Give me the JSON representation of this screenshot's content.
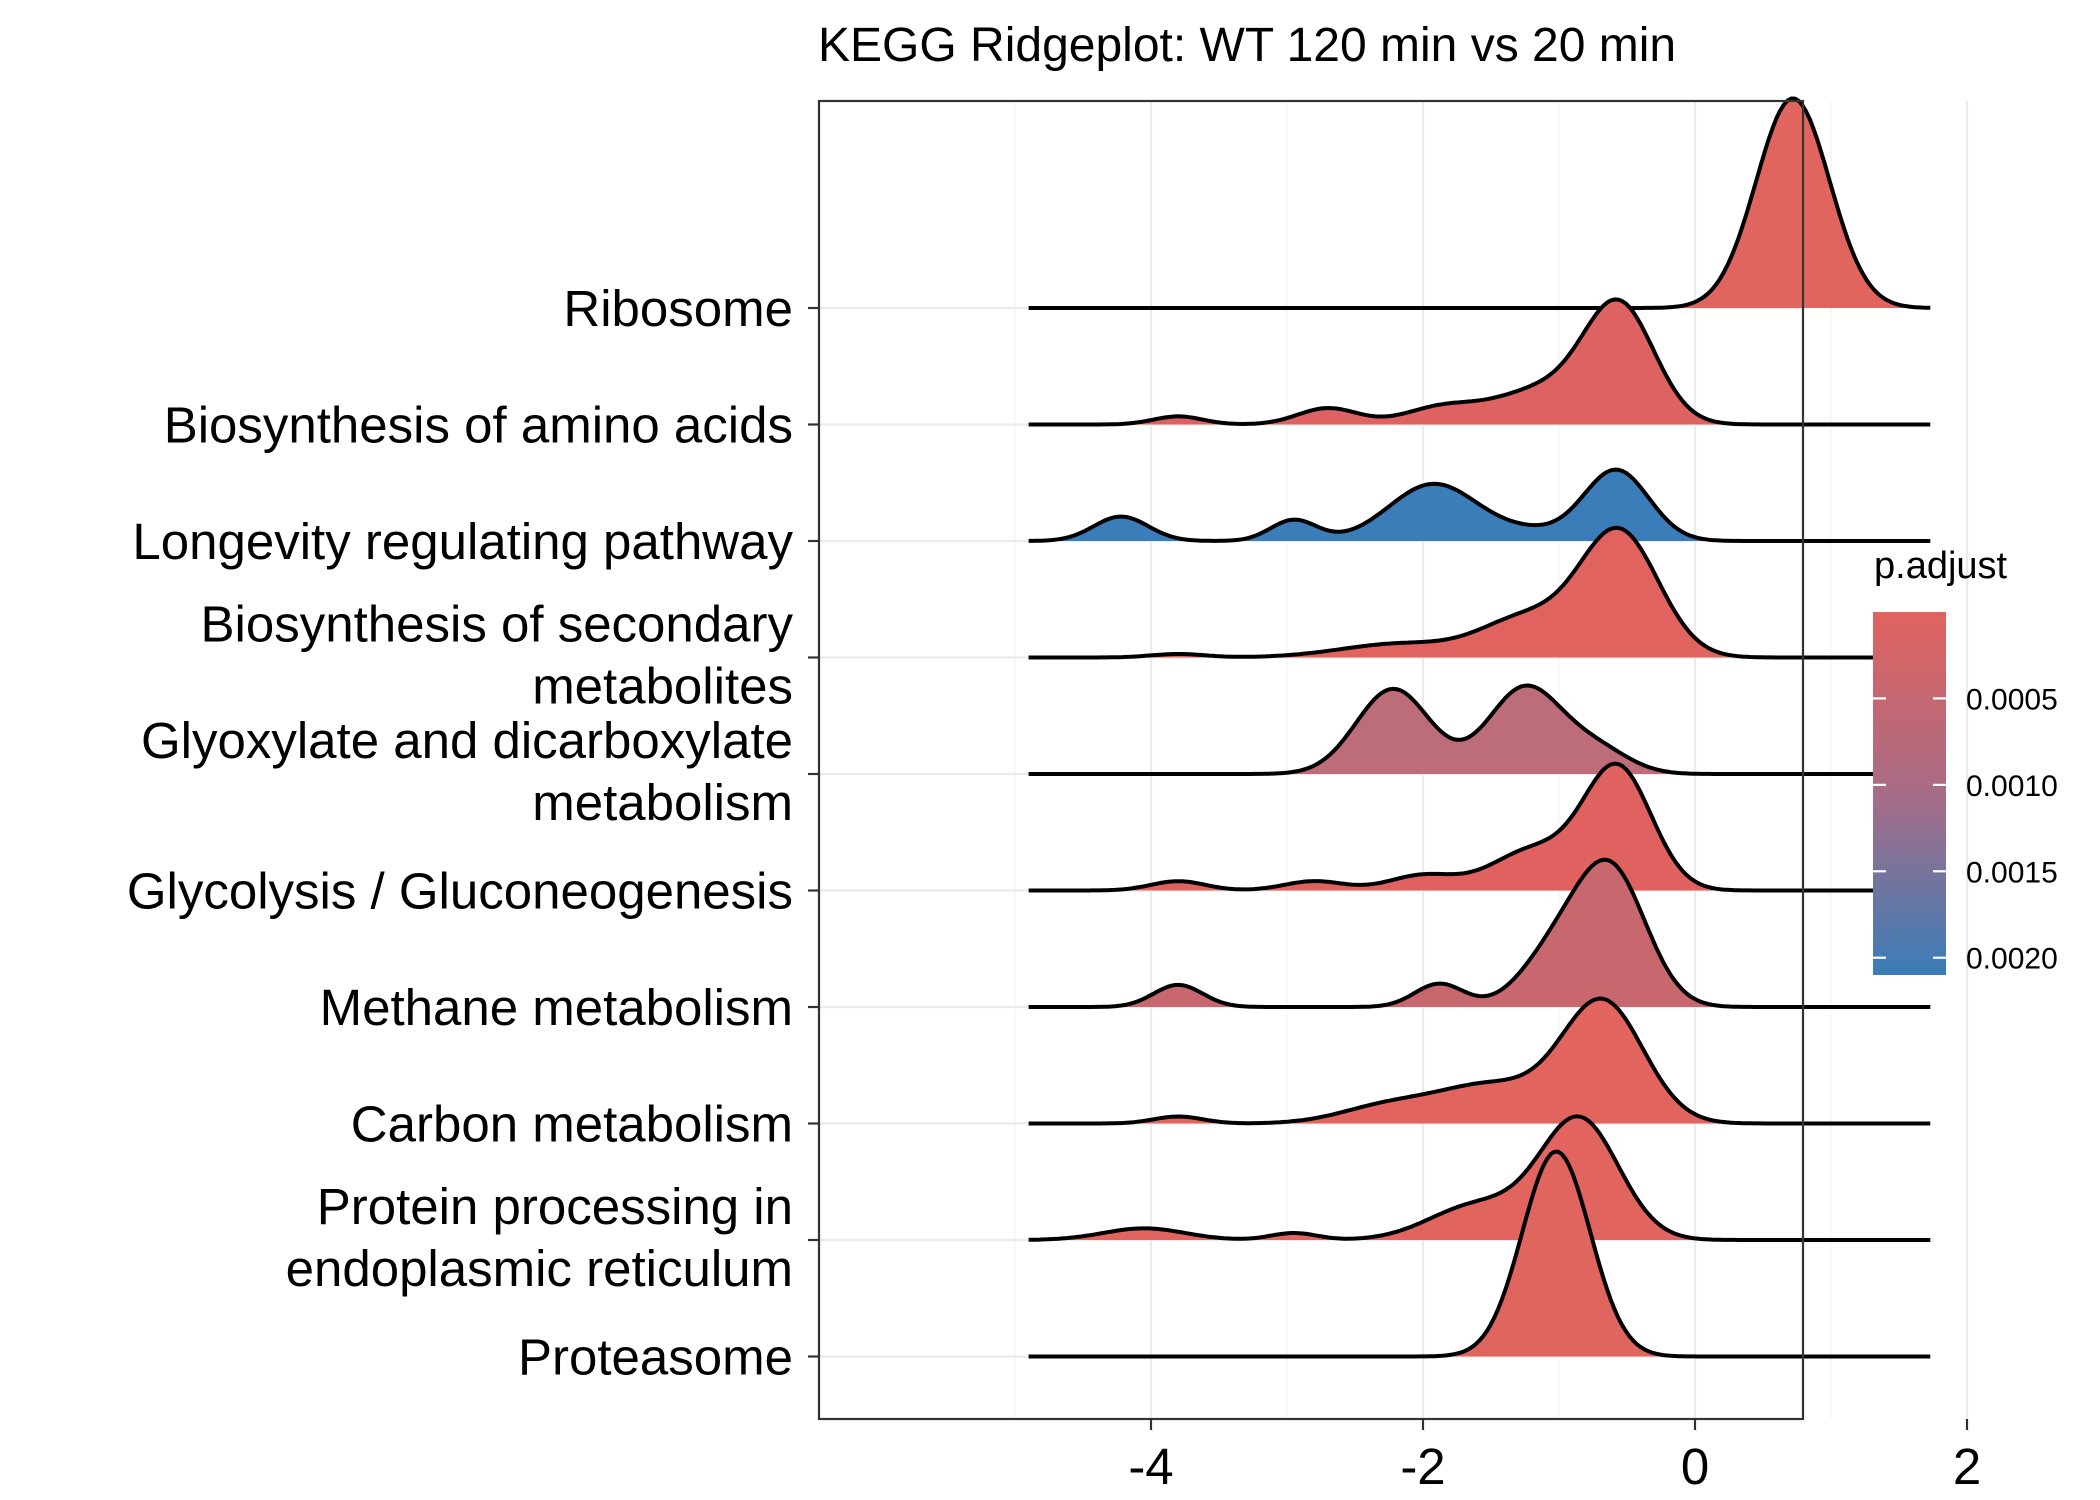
{
  "chart_data": {
    "type": "ridgeline",
    "title": "KEGG Ridgeplot: WT 120 min vs 20 min",
    "xlabel": "",
    "ylabel": "",
    "xlim": [
      -5.5,
      2.15
    ],
    "x_ticks": [
      "-4",
      "-2",
      "0",
      "2"
    ],
    "x_tick_values": [
      -4,
      -2,
      0,
      2
    ],
    "grid": true,
    "legend": {
      "title": "p.adjust",
      "placement": "right",
      "range": [
        0.0,
        0.0021
      ],
      "tick_labels": [
        "0.0005",
        "0.0010",
        "0.0015",
        "0.0020"
      ],
      "tick_values": [
        0.0005,
        0.001,
        0.0015,
        0.002
      ],
      "color_low": "#E0635E",
      "color_high": "#3A7DB8"
    },
    "series": [
      {
        "name": "Ribosome",
        "label_lines": [
          "Ribosome"
        ],
        "p_adjust": 1e-05,
        "color": "#E1655F",
        "x_range": [
          -4.9,
          1.73
        ],
        "peaks": [
          {
            "mu": 0.72,
            "sd": 0.27,
            "h": 1.8
          }
        ]
      },
      {
        "name": "Biosynthesis of amino acids",
        "label_lines": [
          "Biosynthesis of amino acids"
        ],
        "p_adjust": 5e-05,
        "color": "#DE6261",
        "x_range": [
          -4.9,
          1.73
        ],
        "peaks": [
          {
            "mu": -0.56,
            "sd": 0.26,
            "h": 1.02
          },
          {
            "mu": -1.15,
            "sd": 0.32,
            "h": 0.28
          },
          {
            "mu": -1.85,
            "sd": 0.28,
            "h": 0.15
          },
          {
            "mu": -2.7,
            "sd": 0.22,
            "h": 0.14
          },
          {
            "mu": -3.8,
            "sd": 0.18,
            "h": 0.07
          }
        ]
      },
      {
        "name": "Longevity regulating pathway",
        "label_lines": [
          "Longevity regulating pathway"
        ],
        "p_adjust": 0.0021,
        "color": "#3A7DB8",
        "x_range": [
          -4.9,
          1.73
        ],
        "peaks": [
          {
            "mu": -0.58,
            "sd": 0.24,
            "h": 0.61
          },
          {
            "mu": -1.92,
            "sd": 0.33,
            "h": 0.49
          },
          {
            "mu": -2.95,
            "sd": 0.17,
            "h": 0.18
          },
          {
            "mu": -4.22,
            "sd": 0.2,
            "h": 0.21
          },
          {
            "mu": -1.2,
            "sd": 0.25,
            "h": 0.07
          }
        ]
      },
      {
        "name": "Biosynthesis of secondary metabolites",
        "label_lines": [
          "Biosynthesis of secondary",
          "metabolites"
        ],
        "p_adjust": 3e-05,
        "color": "#E0635F",
        "x_range": [
          -4.9,
          1.73
        ],
        "peaks": [
          {
            "mu": -0.56,
            "sd": 0.29,
            "h": 1.08
          },
          {
            "mu": -1.25,
            "sd": 0.32,
            "h": 0.32
          },
          {
            "mu": -2.15,
            "sd": 0.45,
            "h": 0.12
          },
          {
            "mu": -3.8,
            "sd": 0.2,
            "h": 0.03
          }
        ]
      },
      {
        "name": "Glyoxylate and dicarboxylate metabolism",
        "label_lines": [
          "Glyoxylate and dicarboxylate",
          "metabolism"
        ],
        "p_adjust": 0.0009,
        "color": "#BD6C79",
        "x_range": [
          -4.9,
          1.73
        ],
        "peaks": [
          {
            "mu": -2.22,
            "sd": 0.27,
            "h": 0.73
          },
          {
            "mu": -1.25,
            "sd": 0.27,
            "h": 0.74
          },
          {
            "mu": -0.72,
            "sd": 0.24,
            "h": 0.2
          }
        ]
      },
      {
        "name": "Glycolysis / Gluconeogenesis",
        "label_lines": [
          "Glycolysis / Gluconeogenesis"
        ],
        "p_adjust": 4e-05,
        "color": "#DF6260",
        "x_range": [
          -4.9,
          1.73
        ],
        "peaks": [
          {
            "mu": -0.57,
            "sd": 0.25,
            "h": 1.05
          },
          {
            "mu": -1.2,
            "sd": 0.3,
            "h": 0.34
          },
          {
            "mu": -2.0,
            "sd": 0.25,
            "h": 0.13
          },
          {
            "mu": -2.8,
            "sd": 0.22,
            "h": 0.08
          },
          {
            "mu": -3.8,
            "sd": 0.2,
            "h": 0.08
          }
        ]
      },
      {
        "name": "Methane metabolism",
        "label_lines": [
          "Methane metabolism"
        ],
        "p_adjust": 0.0003,
        "color": "#C9676F",
        "x_range": [
          -4.9,
          1.73
        ],
        "peaks": [
          {
            "mu": -0.62,
            "sd": 0.26,
            "h": 1.16
          },
          {
            "mu": -1.05,
            "sd": 0.25,
            "h": 0.4
          },
          {
            "mu": -1.88,
            "sd": 0.18,
            "h": 0.2
          },
          {
            "mu": -3.8,
            "sd": 0.18,
            "h": 0.19
          }
        ]
      },
      {
        "name": "Carbon metabolism",
        "label_lines": [
          "Carbon metabolism"
        ],
        "p_adjust": 2e-05,
        "color": "#E1645F",
        "x_range": [
          -4.9,
          1.73
        ],
        "peaks": [
          {
            "mu": -0.68,
            "sd": 0.3,
            "h": 1.04
          },
          {
            "mu": -1.5,
            "sd": 0.38,
            "h": 0.32
          },
          {
            "mu": -2.25,
            "sd": 0.35,
            "h": 0.15
          },
          {
            "mu": -3.8,
            "sd": 0.18,
            "h": 0.06
          }
        ]
      },
      {
        "name": "Protein processing in endoplasmic reticulum",
        "label_lines": [
          "Protein processing in",
          "endoplasmic reticulum"
        ],
        "p_adjust": 2e-05,
        "color": "#E1645F",
        "x_range": [
          -4.9,
          1.73
        ],
        "peaks": [
          {
            "mu": -0.85,
            "sd": 0.29,
            "h": 1.03
          },
          {
            "mu": -1.6,
            "sd": 0.35,
            "h": 0.3
          },
          {
            "mu": -2.95,
            "sd": 0.17,
            "h": 0.06
          },
          {
            "mu": -4.05,
            "sd": 0.3,
            "h": 0.1
          }
        ]
      },
      {
        "name": "Proteasome",
        "label_lines": [
          "Proteasome"
        ],
        "p_adjust": 1e-05,
        "color": "#E1655F",
        "x_range": [
          -4.9,
          1.73
        ],
        "peaks": [
          {
            "mu": -1.02,
            "sd": 0.25,
            "h": 1.76
          }
        ]
      }
    ]
  }
}
